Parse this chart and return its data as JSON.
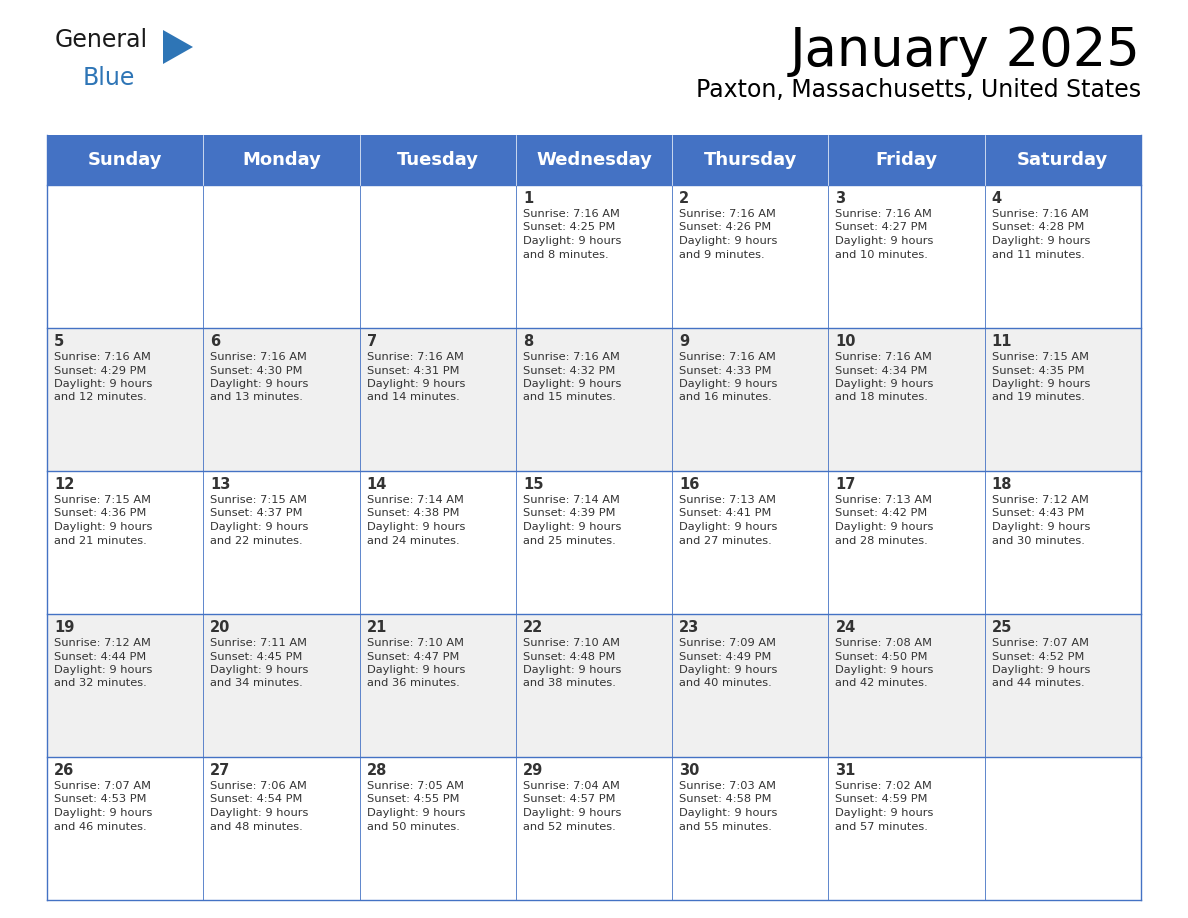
{
  "title": "January 2025",
  "subtitle": "Paxton, Massachusetts, United States",
  "header_bg_color": "#4472C4",
  "header_text_color": "#FFFFFF",
  "header_font_size": 13,
  "day_names": [
    "Sunday",
    "Monday",
    "Tuesday",
    "Wednesday",
    "Thursday",
    "Friday",
    "Saturday"
  ],
  "title_font_size": 38,
  "subtitle_font_size": 17,
  "cell_text_color": "#333333",
  "cell_day_font_size": 10.5,
  "cell_info_font_size": 8.2,
  "grid_color": "#4472C4",
  "alt_row_bg": "#F0F0F0",
  "white_bg": "#FFFFFF",
  "logo_general_color": "#1a1a1a",
  "logo_blue_color": "#2E75B6",
  "calendar_data": [
    [
      null,
      null,
      null,
      {
        "day": 1,
        "sunrise": "7:16 AM",
        "sunset": "4:25 PM",
        "daylight": "9 hours and 8 minutes."
      },
      {
        "day": 2,
        "sunrise": "7:16 AM",
        "sunset": "4:26 PM",
        "daylight": "9 hours and 9 minutes."
      },
      {
        "day": 3,
        "sunrise": "7:16 AM",
        "sunset": "4:27 PM",
        "daylight": "9 hours and 10 minutes."
      },
      {
        "day": 4,
        "sunrise": "7:16 AM",
        "sunset": "4:28 PM",
        "daylight": "9 hours and 11 minutes."
      }
    ],
    [
      {
        "day": 5,
        "sunrise": "7:16 AM",
        "sunset": "4:29 PM",
        "daylight": "9 hours and 12 minutes."
      },
      {
        "day": 6,
        "sunrise": "7:16 AM",
        "sunset": "4:30 PM",
        "daylight": "9 hours and 13 minutes."
      },
      {
        "day": 7,
        "sunrise": "7:16 AM",
        "sunset": "4:31 PM",
        "daylight": "9 hours and 14 minutes."
      },
      {
        "day": 8,
        "sunrise": "7:16 AM",
        "sunset": "4:32 PM",
        "daylight": "9 hours and 15 minutes."
      },
      {
        "day": 9,
        "sunrise": "7:16 AM",
        "sunset": "4:33 PM",
        "daylight": "9 hours and 16 minutes."
      },
      {
        "day": 10,
        "sunrise": "7:16 AM",
        "sunset": "4:34 PM",
        "daylight": "9 hours and 18 minutes."
      },
      {
        "day": 11,
        "sunrise": "7:15 AM",
        "sunset": "4:35 PM",
        "daylight": "9 hours and 19 minutes."
      }
    ],
    [
      {
        "day": 12,
        "sunrise": "7:15 AM",
        "sunset": "4:36 PM",
        "daylight": "9 hours and 21 minutes."
      },
      {
        "day": 13,
        "sunrise": "7:15 AM",
        "sunset": "4:37 PM",
        "daylight": "9 hours and 22 minutes."
      },
      {
        "day": 14,
        "sunrise": "7:14 AM",
        "sunset": "4:38 PM",
        "daylight": "9 hours and 24 minutes."
      },
      {
        "day": 15,
        "sunrise": "7:14 AM",
        "sunset": "4:39 PM",
        "daylight": "9 hours and 25 minutes."
      },
      {
        "day": 16,
        "sunrise": "7:13 AM",
        "sunset": "4:41 PM",
        "daylight": "9 hours and 27 minutes."
      },
      {
        "day": 17,
        "sunrise": "7:13 AM",
        "sunset": "4:42 PM",
        "daylight": "9 hours and 28 minutes."
      },
      {
        "day": 18,
        "sunrise": "7:12 AM",
        "sunset": "4:43 PM",
        "daylight": "9 hours and 30 minutes."
      }
    ],
    [
      {
        "day": 19,
        "sunrise": "7:12 AM",
        "sunset": "4:44 PM",
        "daylight": "9 hours and 32 minutes."
      },
      {
        "day": 20,
        "sunrise": "7:11 AM",
        "sunset": "4:45 PM",
        "daylight": "9 hours and 34 minutes."
      },
      {
        "day": 21,
        "sunrise": "7:10 AM",
        "sunset": "4:47 PM",
        "daylight": "9 hours and 36 minutes."
      },
      {
        "day": 22,
        "sunrise": "7:10 AM",
        "sunset": "4:48 PM",
        "daylight": "9 hours and 38 minutes."
      },
      {
        "day": 23,
        "sunrise": "7:09 AM",
        "sunset": "4:49 PM",
        "daylight": "9 hours and 40 minutes."
      },
      {
        "day": 24,
        "sunrise": "7:08 AM",
        "sunset": "4:50 PM",
        "daylight": "9 hours and 42 minutes."
      },
      {
        "day": 25,
        "sunrise": "7:07 AM",
        "sunset": "4:52 PM",
        "daylight": "9 hours and 44 minutes."
      }
    ],
    [
      {
        "day": 26,
        "sunrise": "7:07 AM",
        "sunset": "4:53 PM",
        "daylight": "9 hours and 46 minutes."
      },
      {
        "day": 27,
        "sunrise": "7:06 AM",
        "sunset": "4:54 PM",
        "daylight": "9 hours and 48 minutes."
      },
      {
        "day": 28,
        "sunrise": "7:05 AM",
        "sunset": "4:55 PM",
        "daylight": "9 hours and 50 minutes."
      },
      {
        "day": 29,
        "sunrise": "7:04 AM",
        "sunset": "4:57 PM",
        "daylight": "9 hours and 52 minutes."
      },
      {
        "day": 30,
        "sunrise": "7:03 AM",
        "sunset": "4:58 PM",
        "daylight": "9 hours and 55 minutes."
      },
      {
        "day": 31,
        "sunrise": "7:02 AM",
        "sunset": "4:59 PM",
        "daylight": "9 hours and 57 minutes."
      },
      null
    ]
  ]
}
